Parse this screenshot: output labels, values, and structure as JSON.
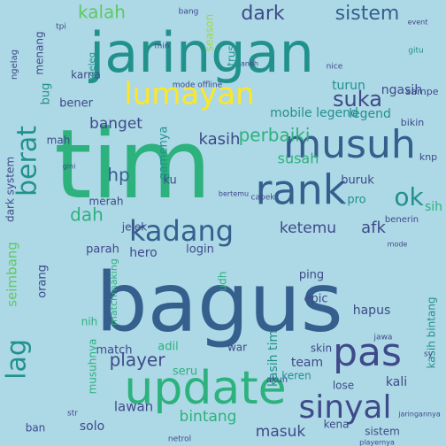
{
  "background": "#add8e6",
  "palette": {
    "dark_blue": "#3b4f8a",
    "slate": "#355f8d",
    "teal": "#21918c",
    "green": "#2db27d",
    "bright_green": "#5ec962",
    "lime": "#a0da39",
    "yellow": "#fde725",
    "navy": "#3e4a89",
    "purple": "#46337e"
  },
  "words": [
    {
      "text": "bagus",
      "color": "#355f8d"
    },
    {
      "text": "jaringan",
      "color": "#21918c"
    },
    {
      "text": "tim",
      "color": "#2db27d"
    },
    {
      "text": "update",
      "color": "#2db27d"
    },
    {
      "text": "musuh",
      "color": "#355f8d"
    },
    {
      "text": "rank",
      "color": "#355f8d"
    },
    {
      "text": "sinyal",
      "color": "#3e4a89"
    },
    {
      "text": "pas",
      "color": "#3e4a89"
    },
    {
      "text": "lumayan",
      "color": "#fde725"
    },
    {
      "text": "kadang",
      "color": "#355f8d"
    },
    {
      "text": "berat",
      "color": "#21918c"
    },
    {
      "text": "ok",
      "color": "#21918c"
    },
    {
      "text": "lag",
      "color": "#21918c"
    },
    {
      "text": "dark",
      "color": "#3e4a89"
    },
    {
      "text": "sistem",
      "color": "#355f8d"
    },
    {
      "text": "suka",
      "color": "#3e4a89"
    },
    {
      "text": "perbaiki",
      "color": "#2db27d"
    },
    {
      "text": "hp",
      "color": "#355f8d"
    },
    {
      "text": "afk",
      "color": "#3e4a89"
    },
    {
      "text": "player",
      "color": "#3e4a89"
    },
    {
      "text": "kalah",
      "color": "#5ec962"
    },
    {
      "text": "kasih",
      "color": "#3e4a89"
    },
    {
      "text": "banget",
      "color": "#3e4a89"
    },
    {
      "text": "ketemu",
      "color": "#3e4a89"
    },
    {
      "text": "dah",
      "color": "#2db27d"
    },
    {
      "text": "seimbang",
      "color": "#5ec962"
    },
    {
      "text": "bintang",
      "color": "#2db27d"
    },
    {
      "text": "masuk",
      "color": "#3e4a89"
    },
    {
      "text": "lawan",
      "color": "#3e4a89"
    },
    {
      "text": "team",
      "color": "#3e4a89"
    },
    {
      "text": "kali",
      "color": "#3e4a89"
    },
    {
      "text": "hapus",
      "color": "#3e4a89"
    },
    {
      "text": "gamenya",
      "color": "#21918c"
    },
    {
      "text": "susah",
      "color": "#2db27d"
    },
    {
      "text": "mobile legend",
      "color": "#21918c"
    },
    {
      "text": "legend",
      "color": "#21918c"
    },
    {
      "text": "turun",
      "color": "#21918c"
    },
    {
      "text": "ngasih",
      "color": "#3e4a89"
    },
    {
      "text": "kasih tim",
      "color": "#21918c"
    },
    {
      "text": "keren",
      "color": "#21918c"
    },
    {
      "text": "skin",
      "color": "#3e4a89"
    },
    {
      "text": "ping",
      "color": "#3e4a89"
    },
    {
      "text": "epic",
      "color": "#3e4a89"
    },
    {
      "text": "seru",
      "color": "#2db27d"
    },
    {
      "text": "adil",
      "color": "#2db27d"
    },
    {
      "text": "match",
      "color": "#3e4a89"
    },
    {
      "text": "war",
      "color": "#3e4a89"
    },
    {
      "text": "hero",
      "color": "#3e4a89"
    },
    {
      "text": "login",
      "color": "#3e4a89"
    },
    {
      "text": "merah",
      "color": "#3e4a89"
    },
    {
      "text": "parah",
      "color": "#3e4a89"
    },
    {
      "text": "matchmaking",
      "color": "#2db27d"
    },
    {
      "text": "bug",
      "color": "#21918c"
    },
    {
      "text": "buruk",
      "color": "#3e4a89"
    },
    {
      "text": "pro",
      "color": "#21918c"
    },
    {
      "text": "sih",
      "color": "#2db27d"
    },
    {
      "text": "solo",
      "color": "#3e4a89"
    },
    {
      "text": "ban",
      "color": "#3e4a89"
    },
    {
      "text": "lose",
      "color": "#3e4a89"
    },
    {
      "text": "kena",
      "color": "#3e4a89"
    },
    {
      "text": "sistem",
      "color": "#3e4a89"
    },
    {
      "text": "kasih bintang",
      "color": "#21918c"
    },
    {
      "text": "nih",
      "color": "#2db27d"
    },
    {
      "text": "udh",
      "color": "#2db27d"
    },
    {
      "text": "orang",
      "color": "#3e4a89"
    },
    {
      "text": "benerin",
      "color": "#3e4a89"
    },
    {
      "text": "jelek",
      "color": "#3e4a89"
    },
    {
      "text": "ku",
      "color": "#3e4a89"
    },
    {
      "text": "dark system",
      "color": "#3e4a89"
    },
    {
      "text": "mah",
      "color": "#3e4a89"
    },
    {
      "text": "bener",
      "color": "#3e4a89"
    },
    {
      "text": "karna",
      "color": "#3e4a89"
    },
    {
      "text": "ngeleg",
      "color": "#21918c"
    },
    {
      "text": "menang",
      "color": "#3e4a89"
    },
    {
      "text": "season",
      "color": "#a0da39"
    },
    {
      "text": "sampe",
      "color": "#3e4a89"
    },
    {
      "text": "bikin",
      "color": "#3e4a89"
    },
    {
      "text": "knp",
      "color": "#3e4a89"
    },
    {
      "text": "event",
      "color": "#3e4a89"
    },
    {
      "text": "gitu",
      "color": "#21918c"
    },
    {
      "text": "trus",
      "color": "#21918c"
    },
    {
      "text": "nice",
      "color": "#3e4a89"
    },
    {
      "text": "bang",
      "color": "#3e4a89"
    },
    {
      "text": "tpi",
      "color": "#3e4a89"
    },
    {
      "text": "mode",
      "color": "#3e4a89"
    },
    {
      "text": "jaringannya",
      "color": "#3e4a89"
    },
    {
      "text": "playernya",
      "color": "#3e4a89"
    },
    {
      "text": "netrol",
      "color": "#3e4a89"
    },
    {
      "text": "str",
      "color": "#3e4a89"
    },
    {
      "text": "mode offline",
      "color": "#3e4a89"
    },
    {
      "text": "musuhnya",
      "color": "#2db27d"
    },
    {
      "text": "ngelag",
      "color": "#3e4a89"
    },
    {
      "text": "sy",
      "color": "#3e4a89"
    },
    {
      "text": "capek",
      "color": "#3e4a89"
    },
    {
      "text": "gini",
      "color": "#3e4a89"
    },
    {
      "text": "min",
      "color": "#3e4a89"
    },
    {
      "text": "aneh",
      "color": "#3e4a89"
    },
    {
      "text": "jawa",
      "color": "#3e4a89"
    },
    {
      "text": "akun",
      "color": "#3e4a89"
    },
    {
      "text": "bertemu",
      "color": "#3e4a89"
    }
  ]
}
